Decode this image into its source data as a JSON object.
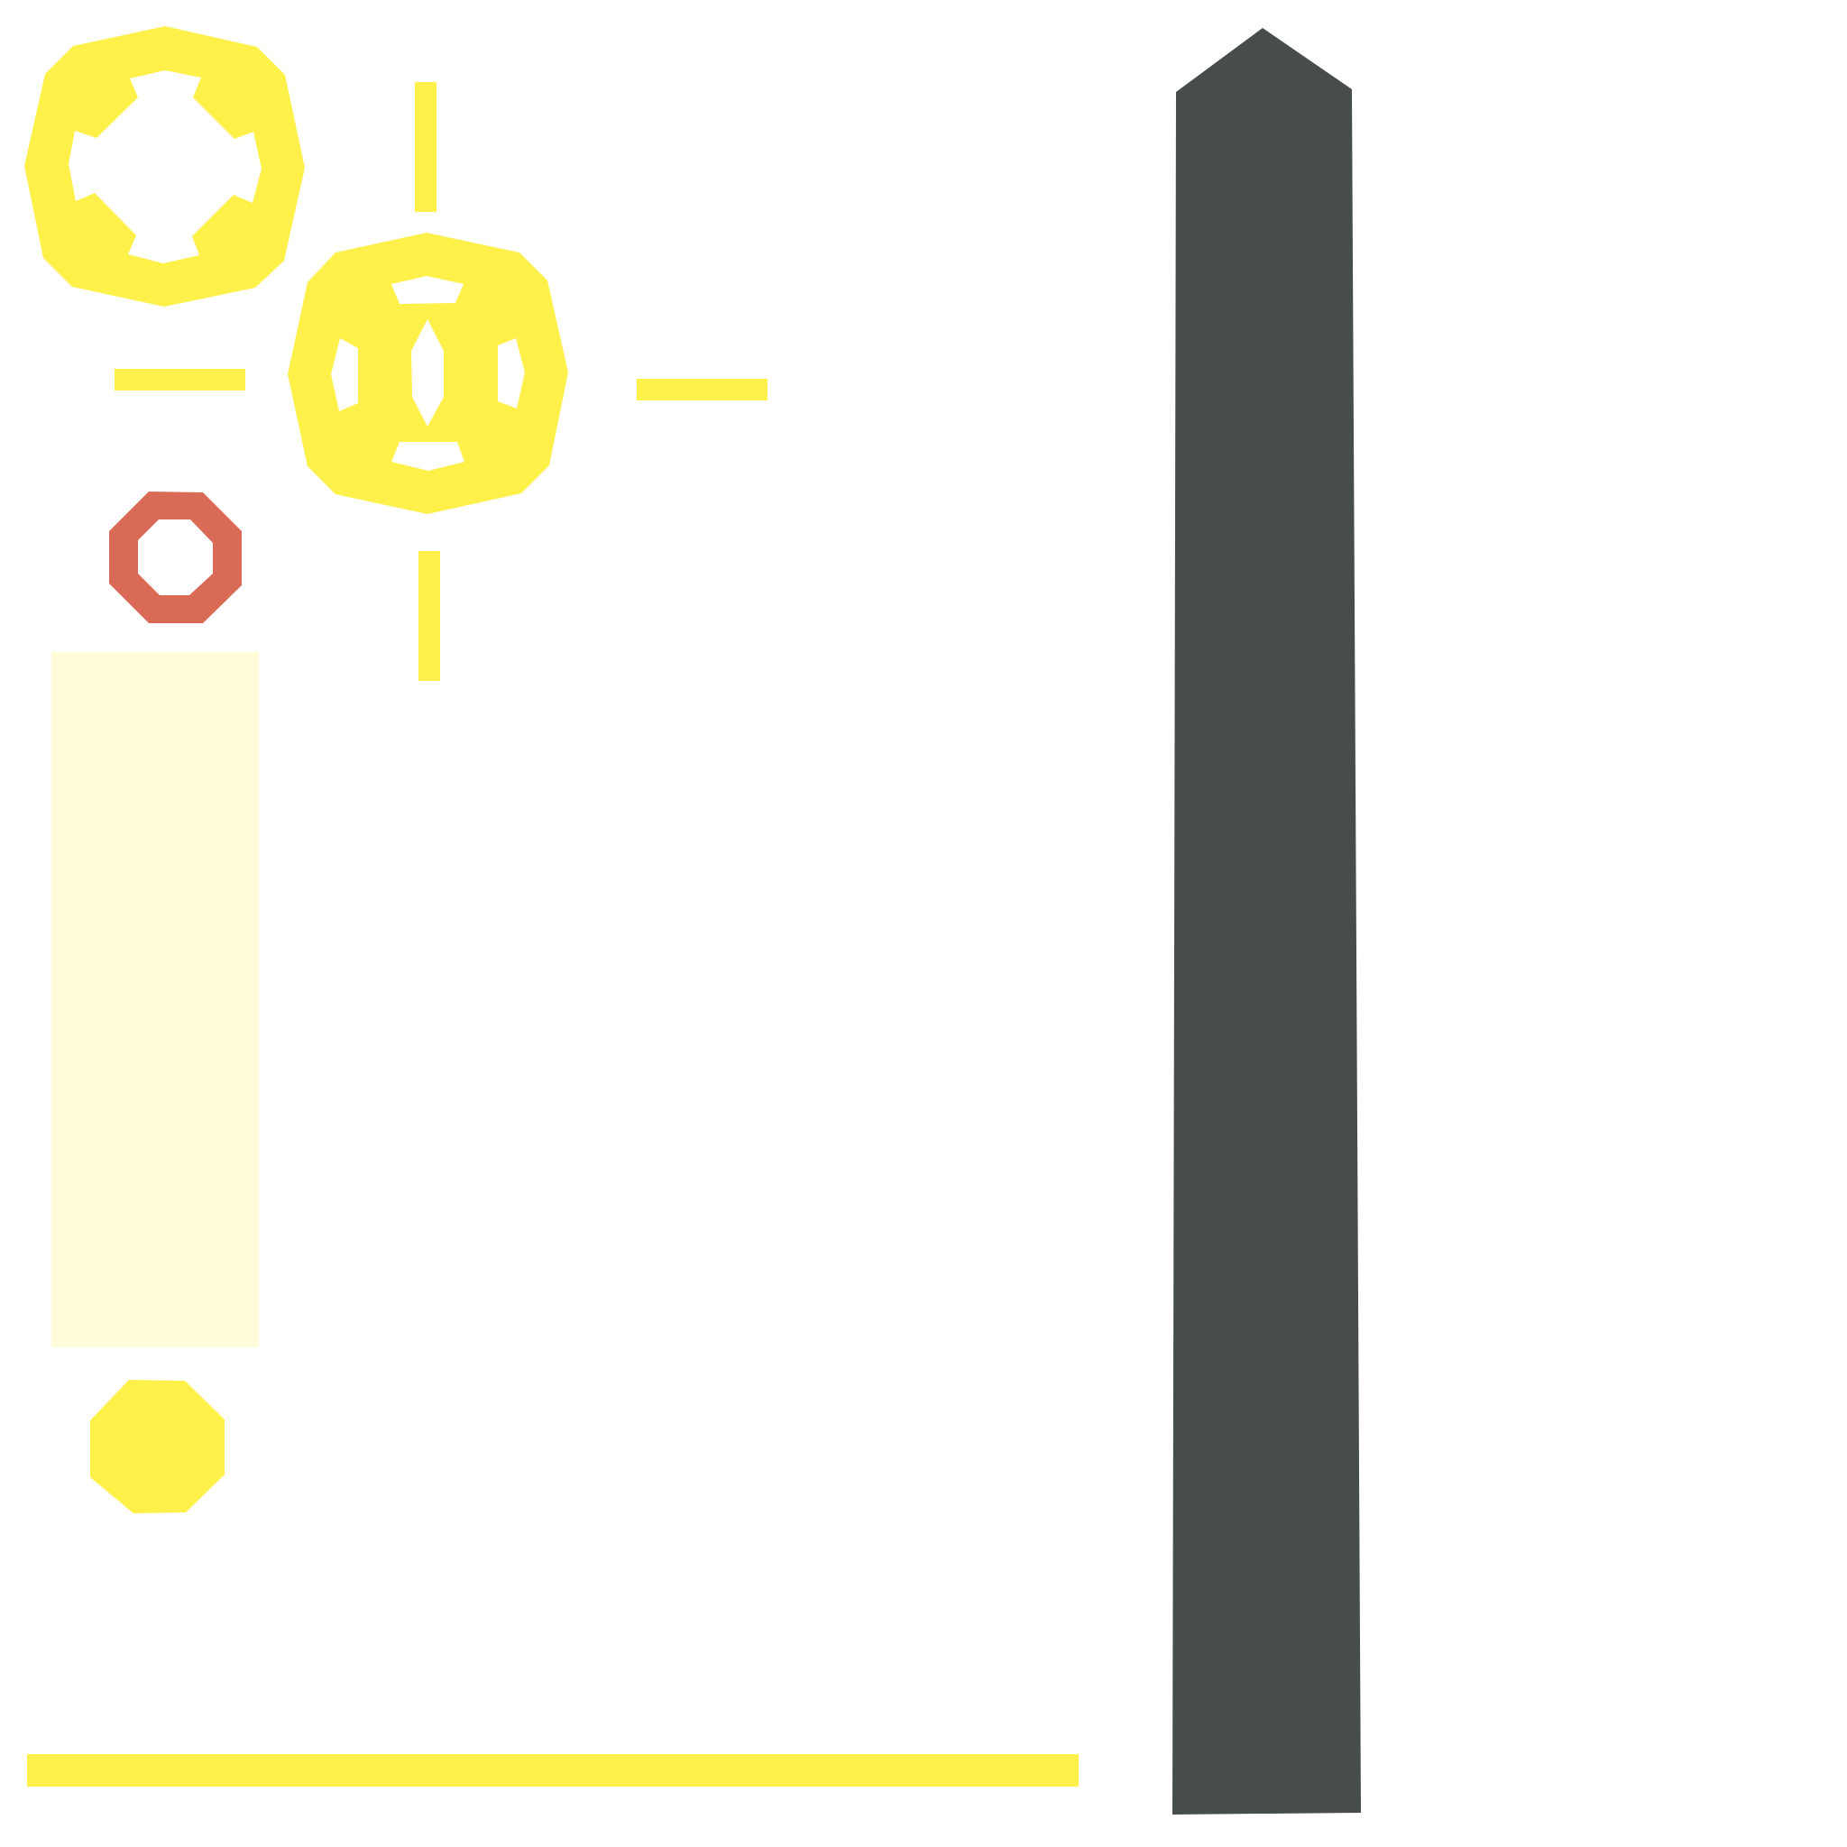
{
  "colors": {
    "background": "#ffffff",
    "accent_yellow": "#fff04a",
    "pale_yellow": "#fffcd9",
    "marker_red": "#d96a56",
    "dark_pillar": "#474d4d"
  },
  "sprites": {
    "cross_medallion": {
      "icon": "medallion-cross-icon"
    },
    "target_medallion": {
      "icon": "medallion-target-icon"
    },
    "crosshair_ticks": {
      "icon": "crosshair-tick-icon"
    },
    "ring_marker": {
      "icon": "octagon-ring-icon"
    },
    "pale_panel": {
      "icon": "translucent-panel"
    },
    "coin": {
      "icon": "octagon-coin-icon"
    },
    "ground_line": {
      "icon": "floor-strip"
    },
    "pillar": {
      "icon": "obelisk-pillar-icon"
    }
  }
}
